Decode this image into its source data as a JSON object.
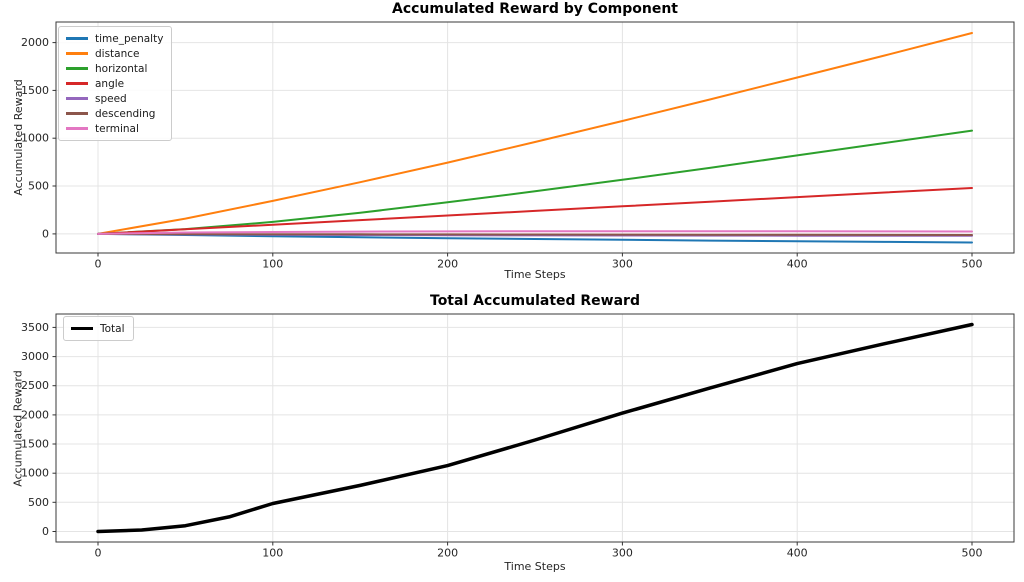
{
  "figure": {
    "background": "#ffffff",
    "grid_color": "#e4e4e4",
    "spine_color": "#3a3a3a",
    "tick_color": "#333333",
    "text_color": "#262626"
  },
  "chart_data": [
    {
      "type": "line",
      "title": "Accumulated Reward by Component",
      "xlabel": "Time Steps",
      "ylabel": "Accumulated Reward",
      "xlim": [
        -24,
        524
      ],
      "ylim": [
        -200,
        2215
      ],
      "xticks": [
        0,
        100,
        200,
        300,
        400,
        500
      ],
      "yticks": [
        0,
        500,
        1000,
        1500,
        2000
      ],
      "grid": true,
      "legend_position": "upper-left",
      "x": [
        0,
        50,
        100,
        150,
        200,
        250,
        300,
        350,
        400,
        450,
        500
      ],
      "series": [
        {
          "name": "time_penalty",
          "color": "#1f77b4",
          "width": 2,
          "values": [
            0,
            -12,
            -24,
            -35,
            -45,
            -54,
            -62,
            -70,
            -77,
            -84,
            -90
          ]
        },
        {
          "name": "distance",
          "color": "#ff7f0e",
          "width": 2,
          "values": [
            0,
            160,
            345,
            540,
            745,
            960,
            1180,
            1405,
            1635,
            1865,
            2100
          ]
        },
        {
          "name": "horizontal",
          "color": "#2ca02c",
          "width": 2,
          "values": [
            0,
            50,
            125,
            220,
            330,
            445,
            565,
            690,
            820,
            950,
            1080
          ]
        },
        {
          "name": "angle",
          "color": "#d62728",
          "width": 2,
          "values": [
            0,
            48,
            96,
            144,
            192,
            240,
            288,
            336,
            384,
            432,
            480
          ]
        },
        {
          "name": "speed",
          "color": "#9467bd",
          "width": 2,
          "values": [
            0,
            -6,
            -9,
            -12,
            -14,
            -16,
            -17,
            -18,
            -19,
            -20,
            -20
          ]
        },
        {
          "name": "descending",
          "color": "#8c564b",
          "width": 2,
          "values": [
            0,
            -2,
            -4,
            -5,
            -6,
            -7,
            -8,
            -9,
            -10,
            -11,
            -12
          ]
        },
        {
          "name": "terminal",
          "color": "#e377c2",
          "width": 2,
          "values": [
            0,
            14,
            20,
            24,
            26,
            28,
            28,
            28,
            27,
            26,
            25
          ]
        }
      ]
    },
    {
      "type": "line",
      "title": "Total Accumulated Reward",
      "xlabel": "Time Steps",
      "ylabel": "Accumulated Reward",
      "xlim": [
        -24,
        524
      ],
      "ylim": [
        -180,
        3730
      ],
      "xticks": [
        0,
        100,
        200,
        300,
        400,
        500
      ],
      "yticks": [
        0,
        500,
        1000,
        1500,
        2000,
        2500,
        3000,
        3500
      ],
      "grid": true,
      "legend_position": "upper-left",
      "x": [
        0,
        25,
        50,
        75,
        100,
        150,
        200,
        250,
        300,
        350,
        400,
        450,
        500
      ],
      "series": [
        {
          "name": "Total",
          "color": "#000000",
          "width": 3.5,
          "values": [
            0,
            25,
            100,
            250,
            480,
            790,
            1130,
            1570,
            2030,
            2460,
            2880,
            3220,
            3550
          ]
        }
      ]
    }
  ]
}
